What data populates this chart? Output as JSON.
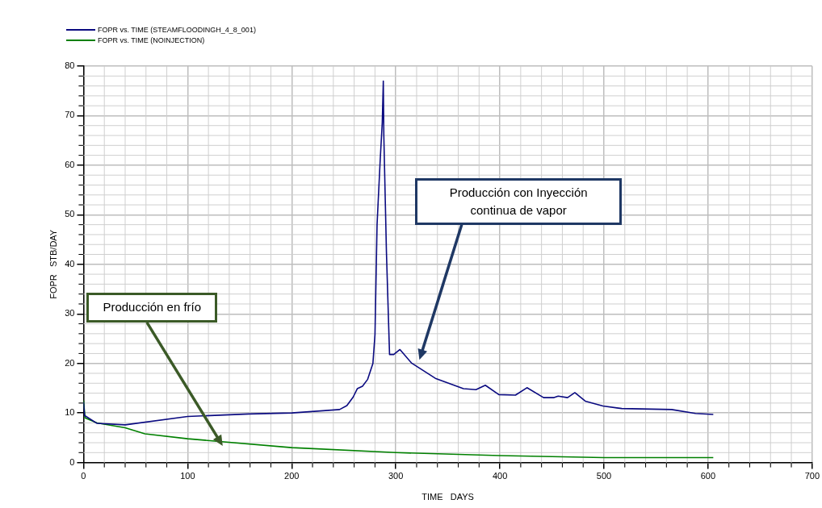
{
  "chart_data": {
    "type": "line",
    "xlabel": "TIME   DAYS",
    "ylabel": "FOPR   STB/DAY",
    "xlim": [
      0,
      700
    ],
    "xticks": [
      0,
      100,
      200,
      300,
      400,
      500,
      600,
      700
    ],
    "ylim": [
      0,
      80
    ],
    "yticks": [
      0,
      10,
      20,
      30,
      40,
      50,
      60,
      70,
      80
    ],
    "grid": true,
    "legend": "top left",
    "marker": "none",
    "line_style": "solid",
    "series": [
      {
        "name": "FOPR  vs.  TIME (STEAMFLOODINGH_4_8_001)",
        "color": "#0a0a80",
        "x": [
          0,
          1,
          13,
          40,
          100,
          159,
          200,
          246,
          253,
          259,
          263,
          268,
          273,
          278,
          280,
          282,
          285,
          287,
          288,
          288.5,
          291,
          294,
          298,
          304,
          315,
          338,
          365,
          377,
          386,
          399,
          415,
          426,
          442,
          452,
          456,
          465,
          472,
          482,
          499,
          517,
          565,
          588,
          605
        ],
        "values": [
          12.2,
          9.5,
          7.9,
          7.6,
          9.3,
          9.8,
          10,
          10.7,
          11.5,
          13.2,
          14.9,
          15.4,
          16.8,
          20,
          25.8,
          48,
          61,
          68.6,
          77,
          66,
          42.5,
          21.8,
          21.8,
          22.8,
          20.1,
          17,
          14.9,
          14.7,
          15.6,
          13.7,
          13.6,
          15.1,
          13.1,
          13.1,
          13.4,
          13.1,
          14.1,
          12.4,
          11.4,
          10.9,
          10.7,
          9.9,
          9.7
        ]
      },
      {
        "name": "FOPR  vs.  TIME (NOINJECTION)",
        "color": "#008000",
        "x": [
          0,
          1.5,
          13,
          40,
          59,
          100,
          200,
          300,
          400,
          500,
          605
        ],
        "values": [
          12.5,
          9,
          8,
          7,
          5.8,
          4.8,
          3,
          2,
          1.4,
          1,
          1
        ]
      }
    ],
    "annotations": [
      "Producción en frío",
      "Producción con Inyección continua de vapor"
    ]
  }
}
